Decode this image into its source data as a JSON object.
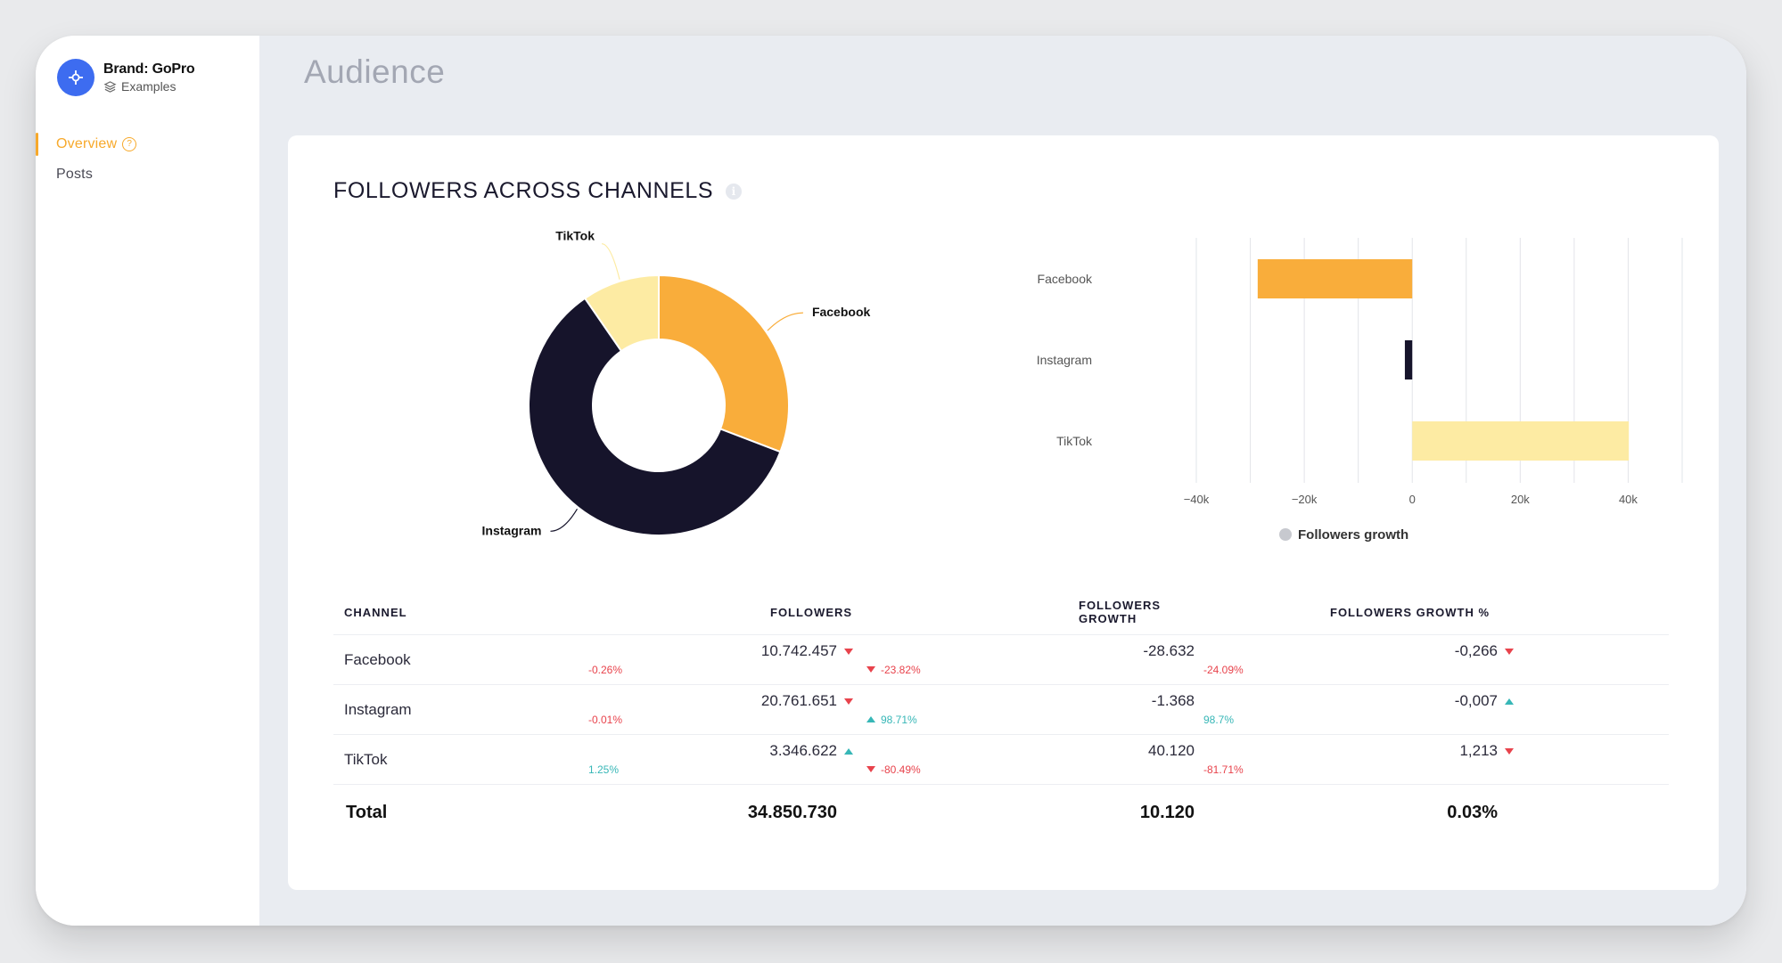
{
  "brand": {
    "name": "Brand: GoPro",
    "workspace": "Examples"
  },
  "nav": {
    "items": [
      {
        "label": "Overview",
        "active": true
      },
      {
        "label": "Posts",
        "active": false
      }
    ]
  },
  "page": {
    "title": "Audience"
  },
  "section": {
    "title": "FOLLOWERS ACROSS CHANNELS"
  },
  "colors": {
    "facebook": "#f9ad3b",
    "instagram": "#16142b",
    "tiktok": "#fdeba3",
    "accent": "#f7a92b",
    "negative": "#e8434c",
    "positive": "#37b7b7"
  },
  "chart_data": [
    {
      "type": "pie",
      "variant": "donut",
      "categories": [
        "Facebook",
        "Instagram",
        "TikTok"
      ],
      "values": [
        10742457,
        20761651,
        3346622
      ]
    },
    {
      "type": "bar",
      "orientation": "horizontal",
      "categories": [
        "Facebook",
        "Instagram",
        "TikTok"
      ],
      "series": [
        {
          "name": "Followers growth",
          "values": [
            -28632,
            -1368,
            40120
          ]
        }
      ],
      "xlim": [
        -40000,
        50000
      ],
      "xticks": [
        "−40k",
        "−20k",
        "0",
        "20k",
        "40k"
      ],
      "grid": true,
      "legend": "bottom"
    }
  ],
  "table": {
    "headers": [
      "CHANNEL",
      "FOLLOWERS",
      "FOLLOWERS GROWTH",
      "FOLLOWERS GROWTH %"
    ],
    "rows": [
      {
        "channel": "Facebook",
        "followers": "10.742.457",
        "followers_change": "-0.26%",
        "followers_dir": "down",
        "growth": "-28.632",
        "growth_change": "-23.82%",
        "growth_dir": "down",
        "growth_pct": "-0,266",
        "growth_pct_change": "-24.09%",
        "growth_pct_dir": "down"
      },
      {
        "channel": "Instagram",
        "followers": "20.761.651",
        "followers_change": "-0.01%",
        "followers_dir": "down",
        "growth": "-1.368",
        "growth_change": "98.71%",
        "growth_dir": "up",
        "growth_pct": "-0,007",
        "growth_pct_change": "98.7%",
        "growth_pct_dir": "up"
      },
      {
        "channel": "TikTok",
        "followers": "3.346.622",
        "followers_change": "1.25%",
        "followers_dir": "up",
        "growth": "40.120",
        "growth_change": "-80.49%",
        "growth_dir": "down",
        "growth_pct": "1,213",
        "growth_pct_change": "-81.71%",
        "growth_pct_dir": "down"
      }
    ],
    "total": {
      "label": "Total",
      "followers": "34.850.730",
      "growth": "10.120",
      "growth_pct": "0.03%"
    }
  }
}
